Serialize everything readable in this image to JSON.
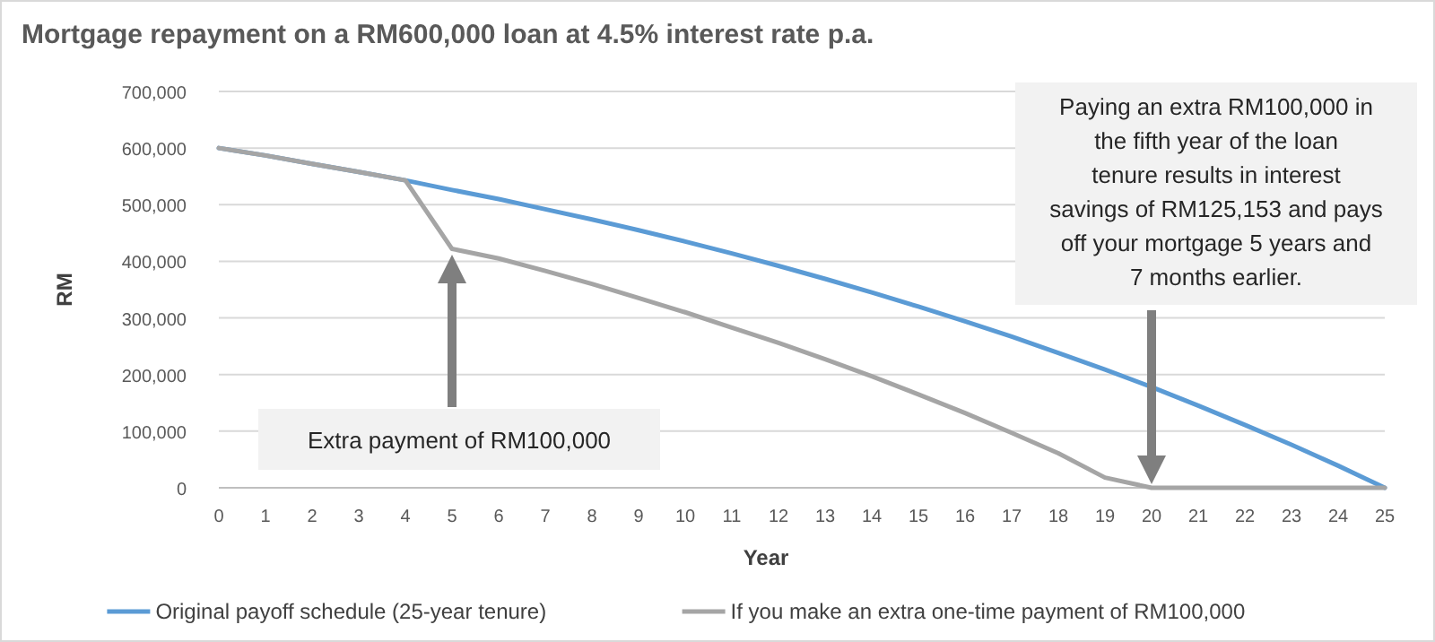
{
  "chart_data": {
    "type": "line",
    "title": "Mortgage repayment on a RM600,000 loan at 4.5% interest rate p.a.",
    "xlabel": "Year",
    "ylabel": "RM",
    "x": [
      0,
      1,
      2,
      3,
      4,
      5,
      6,
      7,
      8,
      9,
      10,
      11,
      12,
      13,
      14,
      15,
      16,
      17,
      18,
      19,
      20,
      21,
      22,
      23,
      24,
      25
    ],
    "series": [
      {
        "name": "Original payoff schedule (25-year tenure)",
        "color": "#5b9bd5",
        "values": [
          600000,
          587000,
          572000,
          558000,
          543000,
          526000,
          510000,
          492000,
          474000,
          455000,
          435000,
          414000,
          392000,
          369000,
          345000,
          320000,
          294000,
          267000,
          238000,
          209000,
          178000,
          145000,
          111000,
          76000,
          39000,
          0
        ]
      },
      {
        "name": "If you make an extra one-time payment of RM100,000",
        "color": "#a5a5a5",
        "values": [
          600000,
          587000,
          572000,
          558000,
          543000,
          422000,
          405000,
          383000,
          360000,
          335000,
          310000,
          283000,
          256000,
          227000,
          197000,
          165000,
          132000,
          97000,
          61000,
          18000,
          0,
          0,
          0,
          0,
          0,
          0
        ]
      }
    ],
    "xlim": [
      0,
      25
    ],
    "xticks": [
      0,
      1,
      2,
      3,
      4,
      5,
      6,
      7,
      8,
      9,
      10,
      11,
      12,
      13,
      14,
      15,
      16,
      17,
      18,
      19,
      20,
      21,
      22,
      23,
      24,
      25
    ],
    "ylim": [
      0,
      700000
    ],
    "yticks": [
      {
        "value": 0,
        "label": "0"
      },
      {
        "value": 100000,
        "label": "100,000"
      },
      {
        "value": 200000,
        "label": "200,000"
      },
      {
        "value": 300000,
        "label": "300,000"
      },
      {
        "value": 400000,
        "label": "400,000"
      },
      {
        "value": 500000,
        "label": "500,000"
      },
      {
        "value": 600000,
        "label": "600,000"
      },
      {
        "value": 700000,
        "label": "700,000"
      }
    ],
    "grid": "y",
    "legend": "bottom",
    "marker": "none",
    "line_style": "solid",
    "annotations": [
      "Extra payment of RM100,000",
      "Paying an extra RM100,000 in the fifth year of the loan tenure results in interest savings of RM125,153 and pays off your mortgage 5 years and 7 months earlier."
    ]
  }
}
